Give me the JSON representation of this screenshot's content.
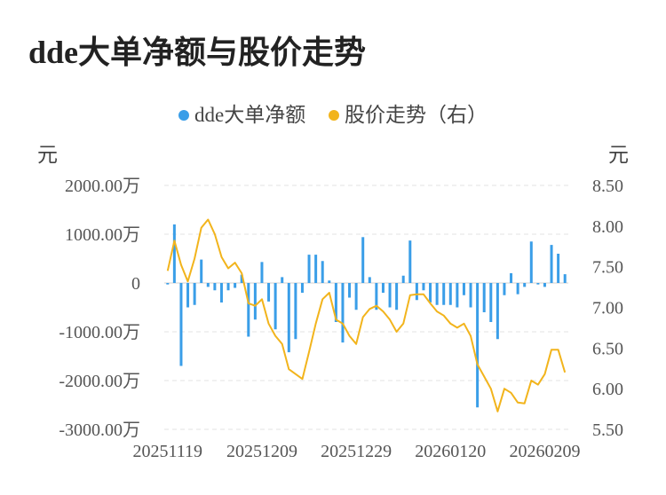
{
  "chart_data": {
    "type": "bar+line",
    "title": "dde大单净额与股价走势",
    "legend": {
      "placement": "top-center",
      "items": [
        {
          "name": "dde大单净额",
          "color": "#3a9ee8"
        },
        {
          "name": "股价走势（右）",
          "color": "#f2b41c"
        }
      ]
    },
    "y_left": {
      "unit_label": "元",
      "ticks": [
        "2000.00万",
        "1000.00万",
        "0",
        "-1000.00万",
        "-2000.00万",
        "-3000.00万"
      ],
      "tick_values": [
        2000,
        1000,
        0,
        -1000,
        -2000,
        -3000
      ],
      "range": [
        -3000,
        2000
      ]
    },
    "y_right": {
      "unit_label": "元",
      "ticks": [
        "8.50",
        "8.00",
        "7.50",
        "7.00",
        "6.50",
        "6.00",
        "5.50"
      ],
      "tick_values": [
        8.5,
        8.0,
        7.5,
        7.0,
        6.5,
        6.0,
        5.5
      ],
      "range": [
        5.5,
        8.5
      ]
    },
    "x_tick_labels": [
      {
        "label": "20251119",
        "index": 0
      },
      {
        "label": "20251209",
        "index": 14
      },
      {
        "label": "20251229",
        "index": 28
      },
      {
        "label": "20260120",
        "index": 42
      },
      {
        "label": "20260209",
        "index": 56
      }
    ],
    "grid": true,
    "series": [
      {
        "name": "dde大单净额",
        "type": "bar",
        "color": "#3a9ee8",
        "values": [
          -30,
          1200,
          -1700,
          -500,
          -450,
          480,
          -80,
          -150,
          -400,
          -150,
          -100,
          170,
          -1100,
          -750,
          430,
          -380,
          -950,
          120,
          -1420,
          -1150,
          -200,
          580,
          580,
          450,
          50,
          -800,
          -1220,
          -300,
          -550,
          940,
          120,
          -550,
          -200,
          -500,
          -550,
          150,
          870,
          -350,
          -150,
          -400,
          -450,
          -450,
          -450,
          -500,
          -250,
          -500,
          -2550,
          -600,
          -800,
          -1150,
          -250,
          200,
          -230,
          -80,
          850,
          -30,
          -80,
          780,
          600,
          180
        ]
      },
      {
        "name": "股价走势（右）",
        "type": "line",
        "color": "#f2b41c",
        "values": [
          7.45,
          7.82,
          7.52,
          7.32,
          7.6,
          7.98,
          8.08,
          7.9,
          7.62,
          7.48,
          7.55,
          7.42,
          7.05,
          7.02,
          7.1,
          6.8,
          6.65,
          6.55,
          6.24,
          6.18,
          6.12,
          6.45,
          6.8,
          7.1,
          7.18,
          6.85,
          6.8,
          6.65,
          6.55,
          6.88,
          6.98,
          7.02,
          6.95,
          6.85,
          6.7,
          6.8,
          7.15,
          7.16,
          7.16,
          7.05,
          6.95,
          6.9,
          6.8,
          6.75,
          6.8,
          6.65,
          6.3,
          6.15,
          6.0,
          5.72,
          6.0,
          5.95,
          5.83,
          5.82,
          6.1,
          6.05,
          6.18,
          6.48,
          6.48,
          6.2
        ]
      }
    ]
  }
}
